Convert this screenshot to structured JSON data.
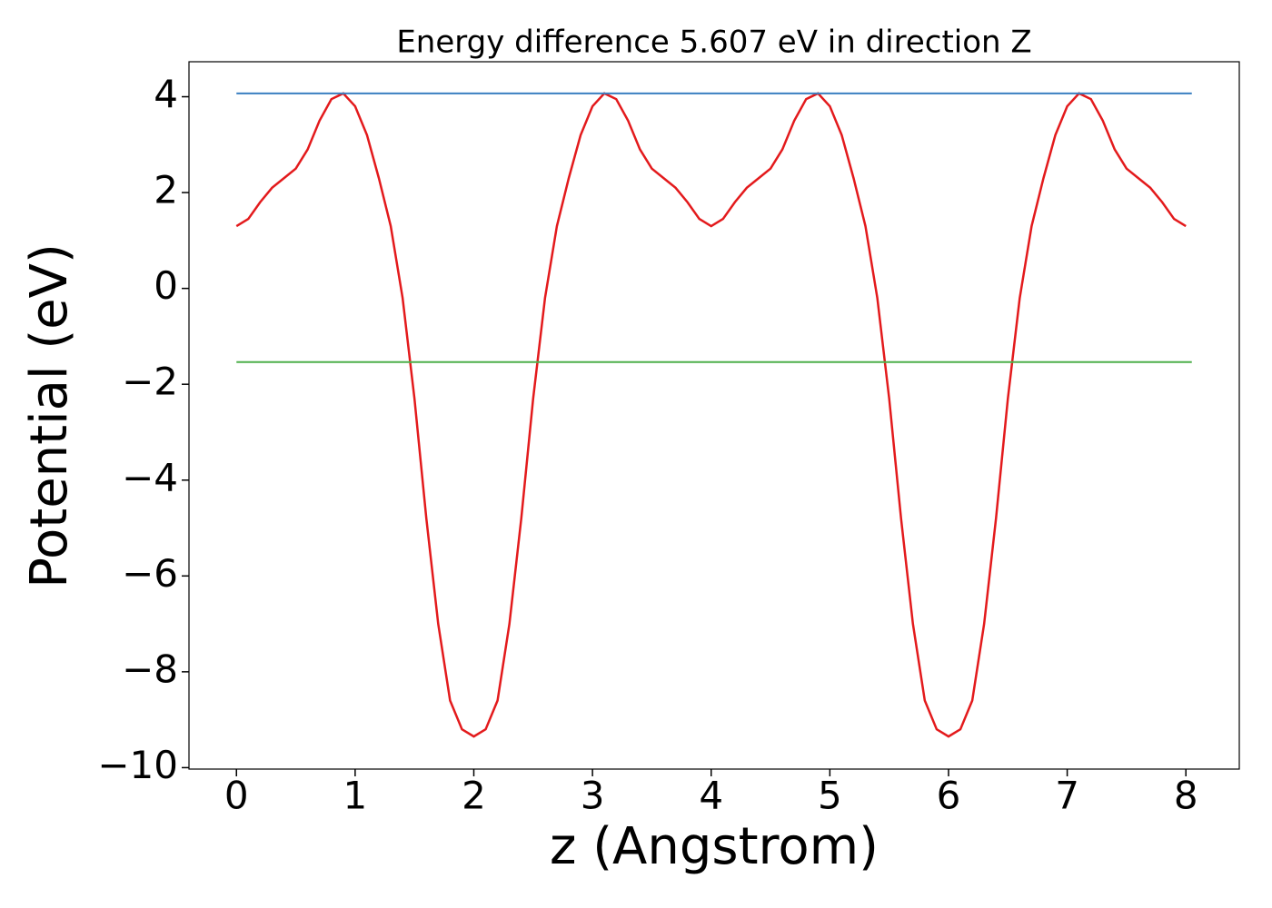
{
  "chart_data": {
    "type": "line",
    "title": "Energy difference 5.607 eV in direction Z",
    "xlabel": "z (Angstrom)",
    "ylabel": "Potential (eV)",
    "xlim": [
      -0.4,
      8.45
    ],
    "ylim": [
      -10.03,
      4.73
    ],
    "xticks": [
      0,
      1,
      2,
      3,
      4,
      5,
      6,
      7,
      8
    ],
    "yticks": [
      {
        "value": -10,
        "label": "−10"
      },
      {
        "value": -8,
        "label": "−8"
      },
      {
        "value": -6,
        "label": "−6"
      },
      {
        "value": -4,
        "label": "−4"
      },
      {
        "value": -2,
        "label": "−2"
      },
      0,
      2,
      4
    ],
    "series": [
      {
        "color": "#e31a1c",
        "x": [
          0,
          0.1,
          0.2,
          0.3,
          0.4,
          0.5,
          0.6,
          0.7,
          0.8,
          0.9,
          1.0,
          1.1,
          1.2,
          1.3,
          1.4,
          1.5,
          1.6,
          1.7,
          1.8,
          1.9,
          2.0,
          2.1,
          2.2,
          2.3,
          2.4,
          2.5,
          2.6,
          2.7,
          2.8,
          2.9,
          3.0,
          3.1,
          3.2,
          3.3,
          3.4,
          3.5,
          3.6,
          3.7,
          3.8,
          3.9,
          4.0,
          4.1,
          4.2,
          4.3,
          4.4,
          4.5,
          4.6,
          4.7,
          4.8,
          4.9,
          5.0,
          5.1,
          5.2,
          5.3,
          5.4,
          5.5,
          5.6,
          5.7,
          5.8,
          5.9,
          6.0,
          6.1,
          6.2,
          6.3,
          6.4,
          6.5,
          6.6,
          6.7,
          6.8,
          6.9,
          7.0,
          7.1,
          7.2,
          7.3,
          7.4,
          7.5,
          7.6,
          7.7,
          7.8,
          7.9,
          8.0
        ],
        "values": [
          1.3,
          1.45,
          1.8,
          2.1,
          2.3,
          2.5,
          2.9,
          3.5,
          3.95,
          4.07,
          3.8,
          3.2,
          2.3,
          1.3,
          -0.2,
          -2.3,
          -4.8,
          -7.0,
          -8.6,
          -9.2,
          -9.35,
          -9.2,
          -8.6,
          -7.0,
          -4.8,
          -2.3,
          -0.2,
          1.3,
          2.3,
          3.2,
          3.8,
          4.07,
          3.95,
          3.5,
          2.9,
          2.5,
          2.3,
          2.1,
          1.8,
          1.45,
          1.3,
          1.45,
          1.8,
          2.1,
          2.3,
          2.5,
          2.9,
          3.5,
          3.95,
          4.07,
          3.8,
          3.2,
          2.3,
          1.3,
          -0.2,
          -2.3,
          -4.8,
          -7.0,
          -8.6,
          -9.2,
          -9.35,
          -9.2,
          -8.6,
          -7.0,
          -4.8,
          -2.3,
          -0.2,
          1.3,
          2.3,
          3.2,
          3.8,
          4.07,
          3.95,
          3.5,
          2.9,
          2.5,
          2.3,
          2.1,
          1.8,
          1.45,
          1.3
        ]
      },
      {
        "color": "#3a7fc1",
        "x": [
          0,
          8.05
        ],
        "values": [
          4.07,
          4.07
        ]
      },
      {
        "color": "#4daf4a",
        "x": [
          0,
          8.05
        ],
        "values": [
          -1.537,
          -1.537
        ]
      }
    ]
  }
}
